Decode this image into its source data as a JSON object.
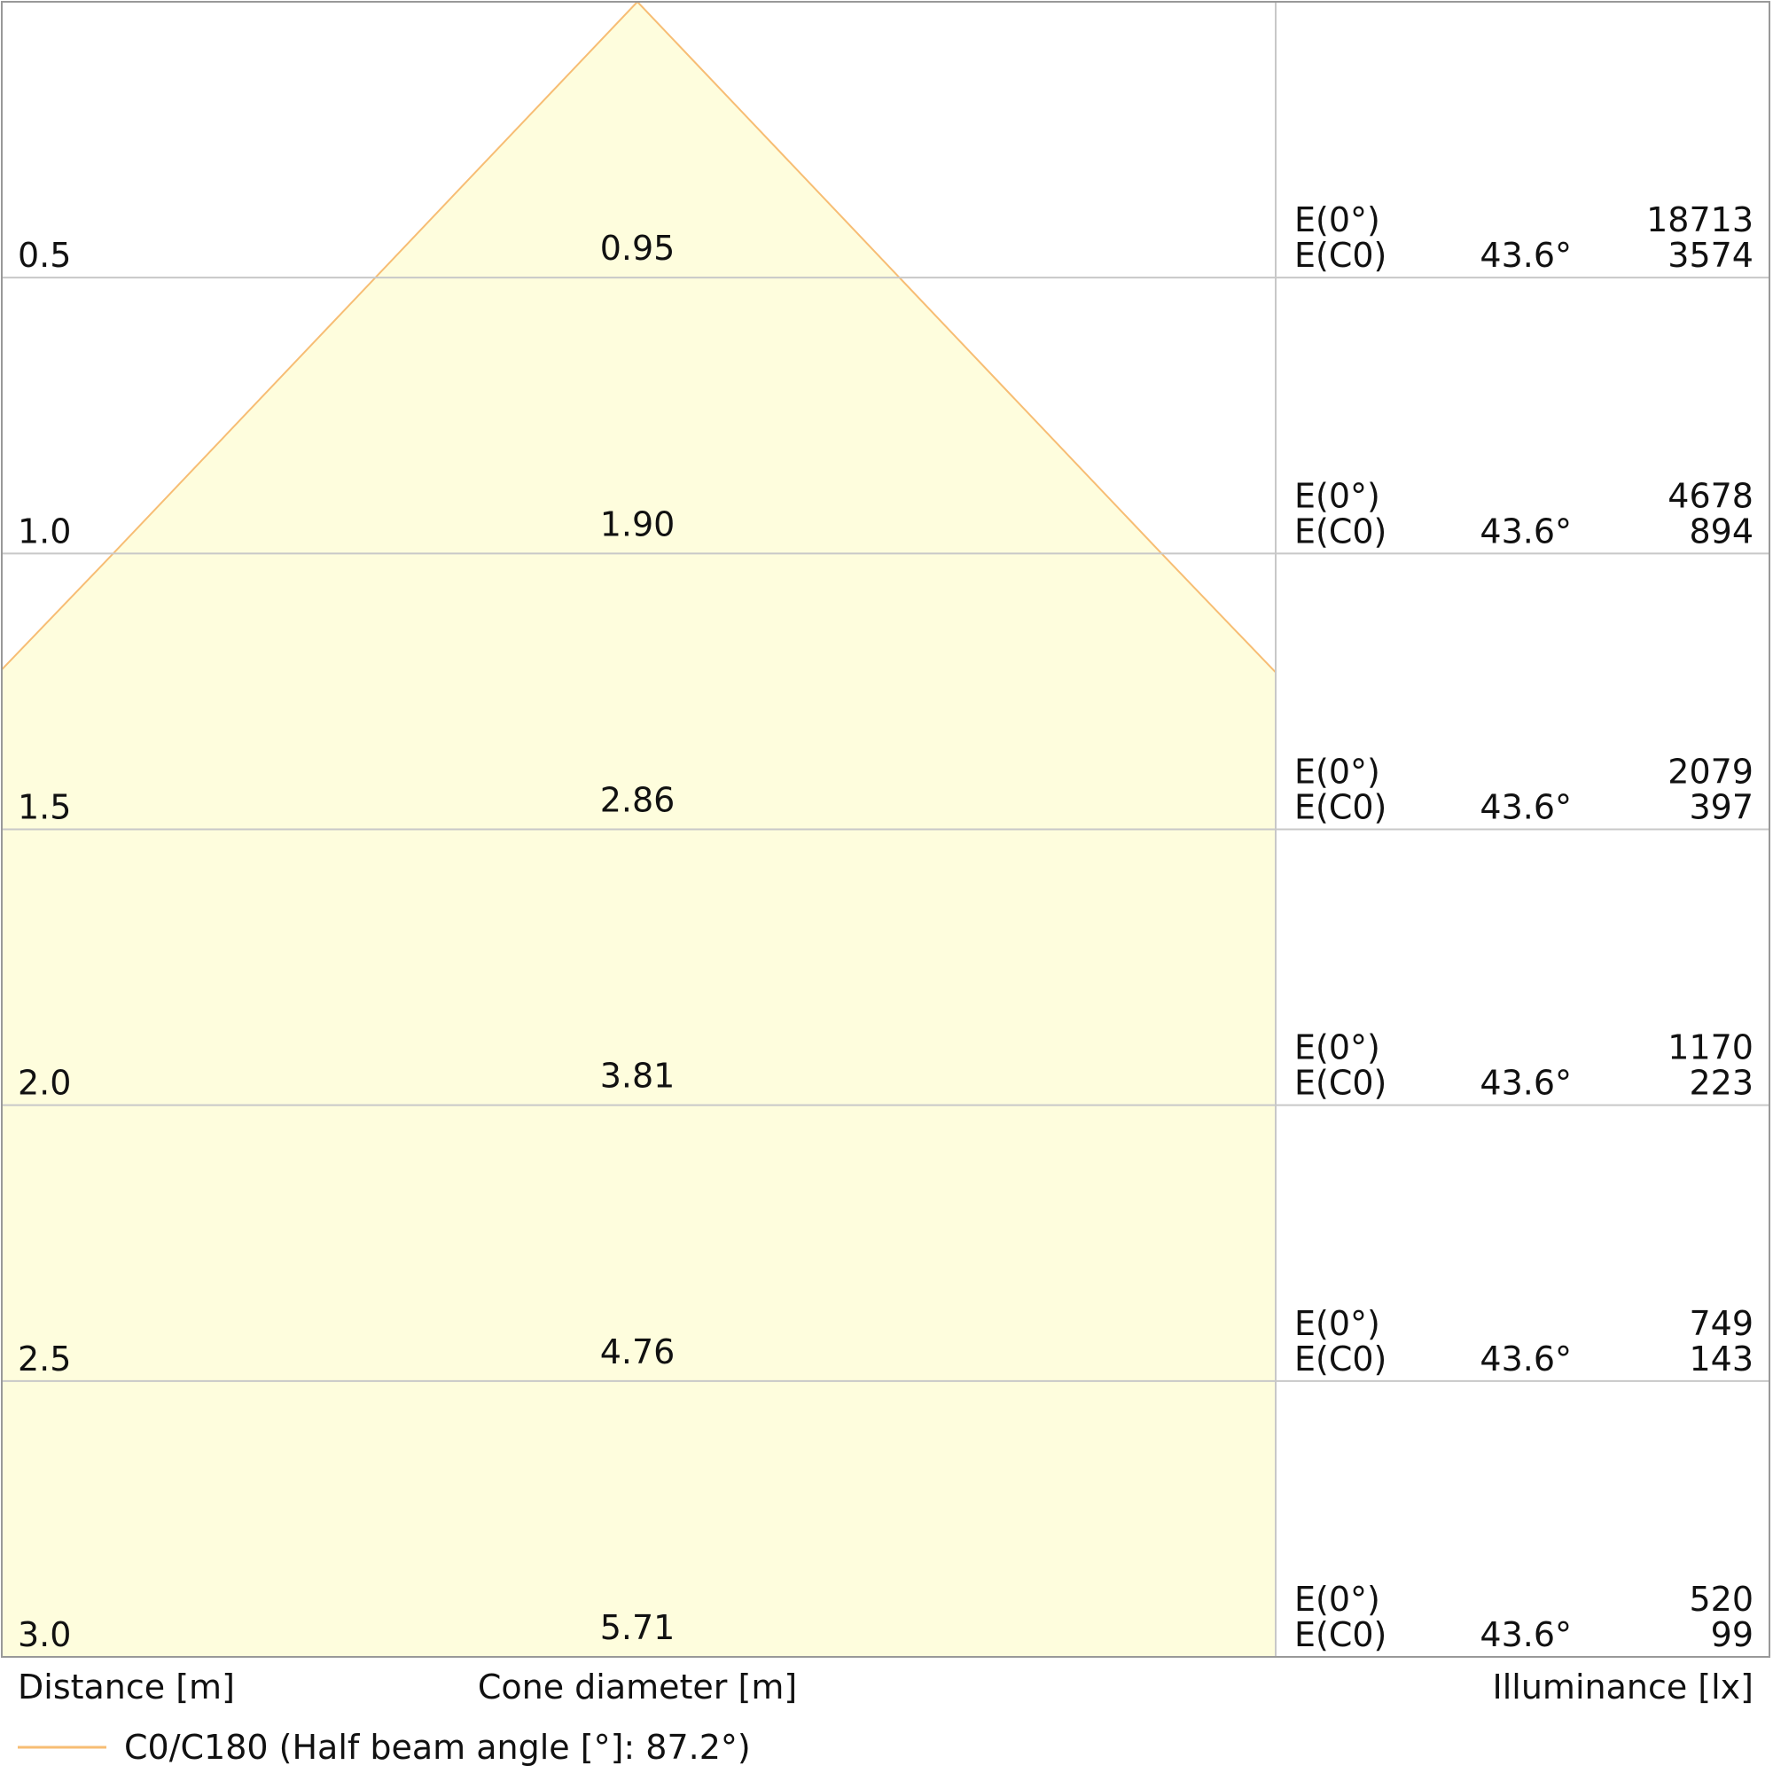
{
  "chart_data": {
    "type": "cone",
    "distances": [
      0.5,
      {
        "value": 1,
        "label": "1.0"
      },
      1.5,
      {
        "value": 2,
        "label": "2.0"
      },
      2.5,
      {
        "value": 3,
        "label": "3.0"
      }
    ],
    "diameters": [
      0.95,
      {
        "value": 1.9,
        "label": "1.90"
      },
      2.86,
      3.81,
      4.76,
      5.71
    ],
    "row_labels": [
      "E(0°)",
      "E(C0)"
    ],
    "angles": [
      {
        "value": 43.6,
        "label": "43.6°"
      },
      {
        "value": 43.6,
        "label": "43.6°"
      },
      {
        "value": 43.6,
        "label": "43.6°"
      },
      {
        "value": 43.6,
        "label": "43.6°"
      },
      {
        "value": 43.6,
        "label": "43.6°"
      },
      {
        "value": 43.6,
        "label": "43.6°"
      }
    ],
    "e0": [
      18713,
      4678,
      2079,
      1170,
      749,
      520
    ],
    "ec0": [
      3574,
      894,
      397,
      223,
      143,
      99
    ],
    "x_label": "Distance [m]",
    "cone_label": "Cone diameter [m]",
    "e_label": "Illuminance [lx]",
    "series": [
      {
        "name": "C0/C180 (Half beam angle [°]: 87.2°)",
        "color": "#f7bd74",
        "fill": "#fefddd"
      }
    ]
  }
}
